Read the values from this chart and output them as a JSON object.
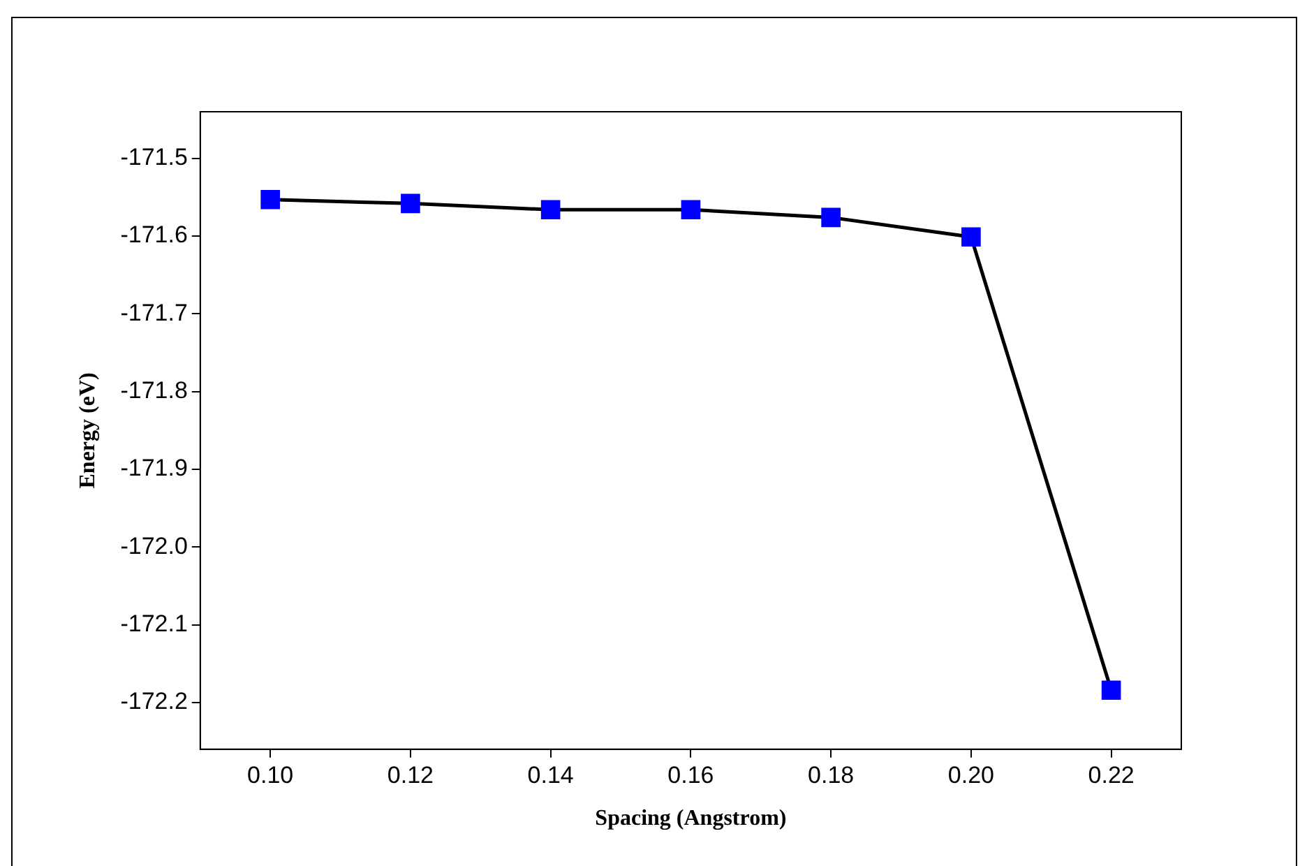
{
  "chart_data": {
    "type": "line",
    "xlabel": "Spacing (Angstrom)",
    "ylabel": "Energy (eV)",
    "x": [
      0.1,
      0.12,
      0.14,
      0.16,
      0.18,
      0.2,
      0.22
    ],
    "series": [
      {
        "color": "#0000ff",
        "values": [
          -171.553,
          -171.558,
          -171.566,
          -171.566,
          -171.576,
          -171.601,
          -172.184
        ]
      }
    ],
    "xlim": [
      0.09,
      0.23
    ],
    "xticks": [
      {
        "value": 0.1,
        "label": "0.10"
      },
      {
        "value": 0.12,
        "label": "0.12"
      },
      {
        "value": 0.14,
        "label": "0.14"
      },
      {
        "value": 0.16,
        "label": "0.16"
      },
      {
        "value": 0.18,
        "label": "0.18"
      },
      {
        "value": 0.2,
        "label": "0.20"
      },
      {
        "value": 0.22,
        "label": "0.22"
      }
    ],
    "ylim": [
      -172.26,
      -171.44
    ],
    "yticks": [
      -171.5,
      -171.6,
      -171.7,
      -171.8,
      -171.9,
      {
        "value": -172.0,
        "label": "-172.0"
      },
      -172.1,
      -172.2
    ],
    "grid": false,
    "legend": false,
    "marker": "square",
    "line_style": "solid"
  }
}
